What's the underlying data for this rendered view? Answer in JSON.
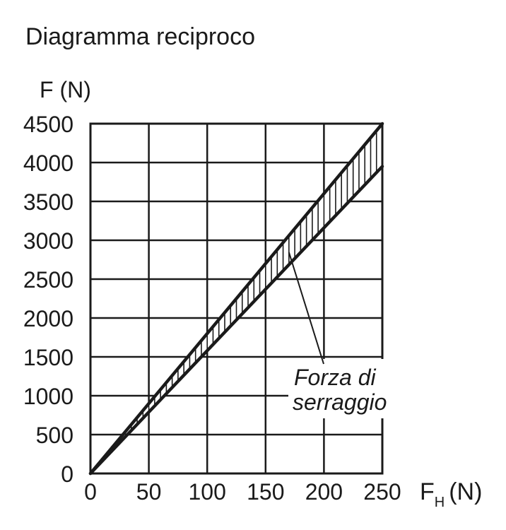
{
  "chart_data": {
    "type": "area",
    "title": "Diagramma reciproco",
    "ylabel": "F (N)",
    "xlabel_main": "F",
    "xlabel_sub": "H",
    "xlabel_unit": "(N)",
    "xlim": [
      0,
      250
    ],
    "ylim": [
      0,
      4500
    ],
    "x_ticks": [
      0,
      50,
      100,
      150,
      200,
      250
    ],
    "y_ticks": [
      0,
      500,
      1000,
      1500,
      2000,
      2500,
      3000,
      3500,
      4000,
      4500
    ],
    "grid": true,
    "series": [
      {
        "x": [
          0,
          250
        ],
        "y": [
          0,
          4500
        ]
      },
      {
        "x": [
          0,
          250
        ],
        "y": [
          0,
          3950
        ]
      }
    ],
    "annotation": {
      "line1": "Forza di",
      "line2": "serraggio",
      "points_to": {
        "x": 170,
        "y": 2900
      }
    },
    "colors": {
      "ink": "#1a1a1a",
      "background": "#ffffff"
    }
  }
}
